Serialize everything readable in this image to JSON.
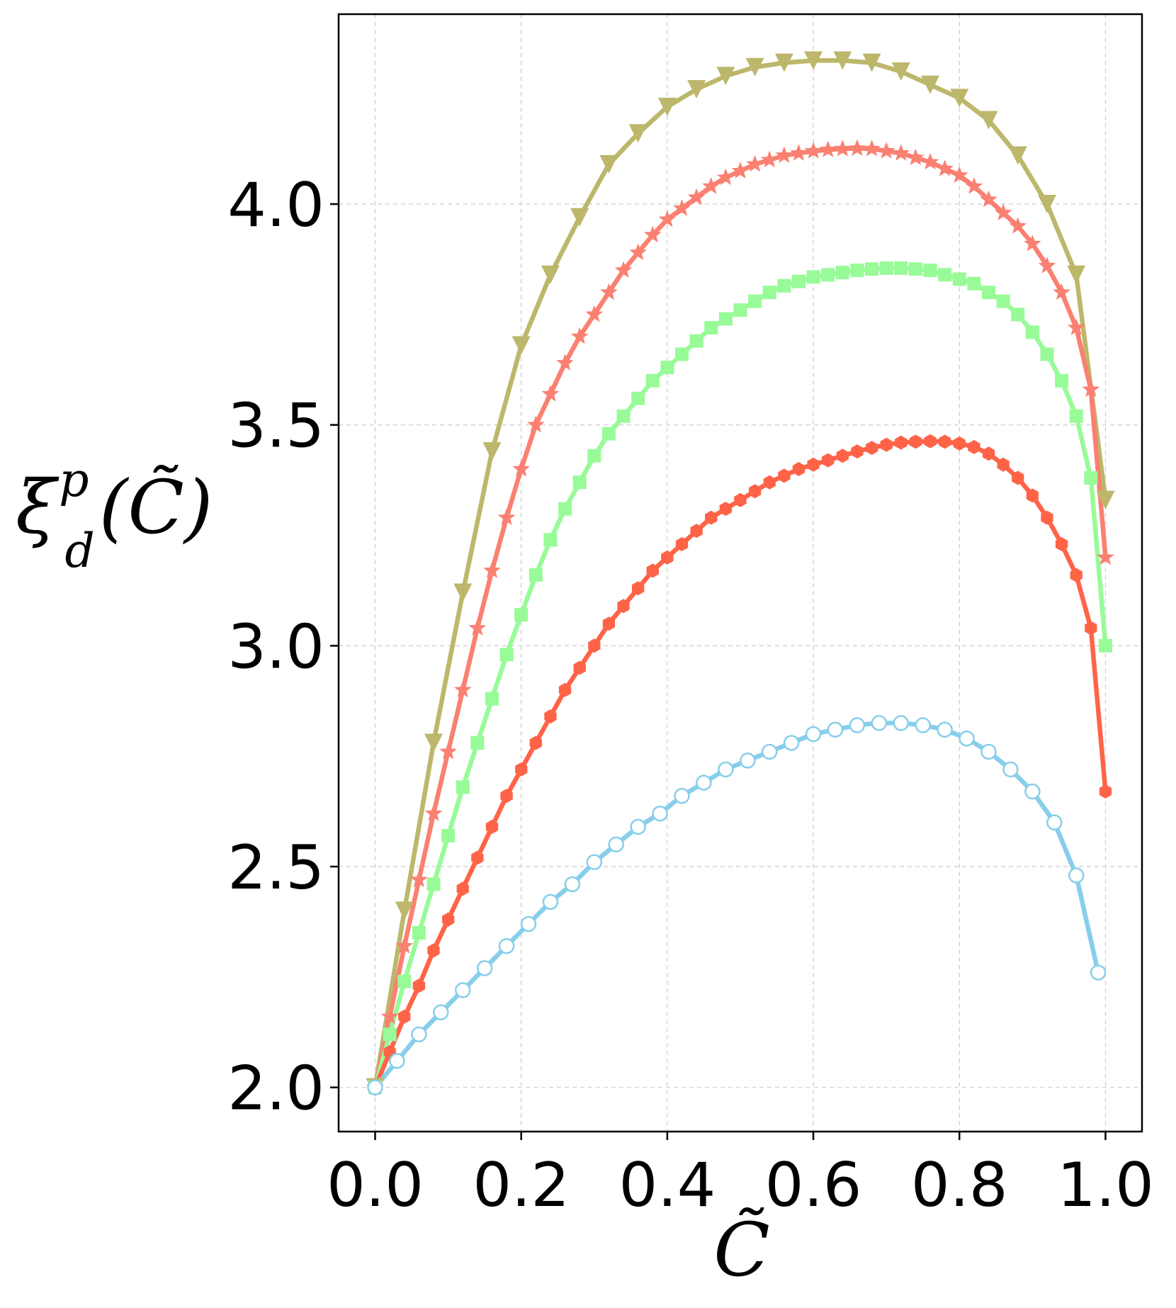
{
  "chart_data": {
    "type": "line",
    "xlabel": "C̃",
    "ylabel": "ξ",
    "ylabel_sup": "p",
    "ylabel_sub": "d",
    "ylabel_arg": "(C̃)",
    "xlim": [
      -0.05,
      1.05
    ],
    "ylim": [
      1.9,
      4.43
    ],
    "xticks": [
      0.0,
      0.2,
      0.4,
      0.6,
      0.8,
      1.0
    ],
    "xtick_labels": [
      "0.0",
      "0.2",
      "0.4",
      "0.6",
      "0.8",
      "1.0"
    ],
    "yticks": [
      2.0,
      2.5,
      3.0,
      3.5,
      4.0
    ],
    "ytick_labels": [
      "2.0",
      "2.5",
      "3.0",
      "3.5",
      "4.0"
    ],
    "grid": true,
    "series": [
      {
        "color": "#bdb76b",
        "marker": "triangle-down",
        "x": [
          0.0,
          0.04,
          0.08,
          0.12,
          0.16,
          0.2,
          0.24,
          0.28,
          0.32,
          0.36,
          0.4,
          0.44,
          0.48,
          0.52,
          0.56,
          0.6,
          0.64,
          0.68,
          0.72,
          0.76,
          0.8,
          0.84,
          0.88,
          0.92,
          0.96,
          1.0
        ],
        "y": [
          2.0,
          2.4,
          2.78,
          3.12,
          3.44,
          3.68,
          3.84,
          3.97,
          4.09,
          4.16,
          4.22,
          4.26,
          4.29,
          4.31,
          4.32,
          4.325,
          4.325,
          4.32,
          4.3,
          4.27,
          4.24,
          4.19,
          4.11,
          4.0,
          3.84,
          3.33
        ]
      },
      {
        "color": "#fa8072",
        "marker": "star",
        "x": [
          0.0,
          0.02,
          0.04,
          0.06,
          0.08,
          0.1,
          0.12,
          0.14,
          0.16,
          0.18,
          0.2,
          0.22,
          0.24,
          0.26,
          0.28,
          0.3,
          0.32,
          0.34,
          0.36,
          0.38,
          0.4,
          0.42,
          0.44,
          0.46,
          0.48,
          0.5,
          0.52,
          0.54,
          0.56,
          0.58,
          0.6,
          0.62,
          0.64,
          0.66,
          0.68,
          0.7,
          0.72,
          0.74,
          0.76,
          0.78,
          0.8,
          0.82,
          0.84,
          0.86,
          0.88,
          0.9,
          0.92,
          0.94,
          0.96,
          0.98,
          1.0
        ],
        "y": [
          2.0,
          2.16,
          2.32,
          2.47,
          2.62,
          2.76,
          2.9,
          3.04,
          3.17,
          3.29,
          3.4,
          3.5,
          3.57,
          3.64,
          3.7,
          3.75,
          3.8,
          3.85,
          3.89,
          3.93,
          3.965,
          3.99,
          4.015,
          4.04,
          4.06,
          4.075,
          4.09,
          4.1,
          4.11,
          4.115,
          4.12,
          4.123,
          4.125,
          4.126,
          4.125,
          4.12,
          4.115,
          4.105,
          4.095,
          4.08,
          4.065,
          4.04,
          4.01,
          3.98,
          3.95,
          3.91,
          3.86,
          3.8,
          3.72,
          3.58,
          3.2
        ]
      },
      {
        "color": "#98fb98",
        "marker": "square",
        "x": [
          0.0,
          0.02,
          0.04,
          0.06,
          0.08,
          0.1,
          0.12,
          0.14,
          0.16,
          0.18,
          0.2,
          0.22,
          0.24,
          0.26,
          0.28,
          0.3,
          0.32,
          0.34,
          0.36,
          0.38,
          0.4,
          0.42,
          0.44,
          0.46,
          0.48,
          0.5,
          0.52,
          0.54,
          0.56,
          0.58,
          0.6,
          0.62,
          0.64,
          0.66,
          0.68,
          0.7,
          0.72,
          0.74,
          0.76,
          0.78,
          0.8,
          0.82,
          0.84,
          0.86,
          0.88,
          0.9,
          0.92,
          0.94,
          0.96,
          0.98,
          1.0
        ],
        "y": [
          2.0,
          2.12,
          2.24,
          2.35,
          2.46,
          2.57,
          2.68,
          2.78,
          2.88,
          2.98,
          3.07,
          3.16,
          3.24,
          3.31,
          3.37,
          3.43,
          3.48,
          3.52,
          3.56,
          3.6,
          3.63,
          3.66,
          3.69,
          3.72,
          3.74,
          3.76,
          3.78,
          3.8,
          3.815,
          3.825,
          3.835,
          3.84,
          3.845,
          3.85,
          3.853,
          3.855,
          3.855,
          3.853,
          3.85,
          3.84,
          3.83,
          3.82,
          3.8,
          3.78,
          3.75,
          3.71,
          3.66,
          3.6,
          3.52,
          3.38,
          3.0
        ]
      },
      {
        "color": "#ff6347",
        "marker": "hexagon",
        "x": [
          0.0,
          0.02,
          0.04,
          0.06,
          0.08,
          0.1,
          0.12,
          0.14,
          0.16,
          0.18,
          0.2,
          0.22,
          0.24,
          0.26,
          0.28,
          0.3,
          0.32,
          0.34,
          0.36,
          0.38,
          0.4,
          0.42,
          0.44,
          0.46,
          0.48,
          0.5,
          0.52,
          0.54,
          0.56,
          0.58,
          0.6,
          0.62,
          0.64,
          0.66,
          0.68,
          0.7,
          0.72,
          0.74,
          0.76,
          0.78,
          0.8,
          0.82,
          0.84,
          0.86,
          0.88,
          0.9,
          0.92,
          0.94,
          0.96,
          0.98,
          1.0
        ],
        "y": [
          2.0,
          2.08,
          2.16,
          2.23,
          2.31,
          2.38,
          2.45,
          2.52,
          2.59,
          2.66,
          2.72,
          2.78,
          2.84,
          2.9,
          2.95,
          3.0,
          3.05,
          3.09,
          3.13,
          3.17,
          3.2,
          3.23,
          3.26,
          3.29,
          3.31,
          3.33,
          3.35,
          3.37,
          3.385,
          3.4,
          3.41,
          3.42,
          3.43,
          3.44,
          3.448,
          3.455,
          3.46,
          3.462,
          3.463,
          3.462,
          3.458,
          3.45,
          3.435,
          3.41,
          3.38,
          3.34,
          3.29,
          3.23,
          3.16,
          3.04,
          2.67
        ]
      },
      {
        "color": "#87ceeb",
        "marker": "circle-open",
        "x": [
          0.0,
          0.03,
          0.06,
          0.09,
          0.12,
          0.15,
          0.18,
          0.21,
          0.24,
          0.27,
          0.3,
          0.33,
          0.36,
          0.39,
          0.42,
          0.45,
          0.48,
          0.51,
          0.54,
          0.57,
          0.6,
          0.63,
          0.66,
          0.69,
          0.72,
          0.75,
          0.78,
          0.81,
          0.84,
          0.87,
          0.9,
          0.93,
          0.96,
          0.99
        ],
        "y": [
          2.0,
          2.06,
          2.12,
          2.17,
          2.22,
          2.27,
          2.32,
          2.37,
          2.42,
          2.46,
          2.51,
          2.55,
          2.59,
          2.62,
          2.66,
          2.69,
          2.72,
          2.74,
          2.76,
          2.78,
          2.8,
          2.81,
          2.82,
          2.825,
          2.825,
          2.82,
          2.81,
          2.79,
          2.76,
          2.72,
          2.67,
          2.6,
          2.48,
          2.26
        ]
      }
    ]
  }
}
